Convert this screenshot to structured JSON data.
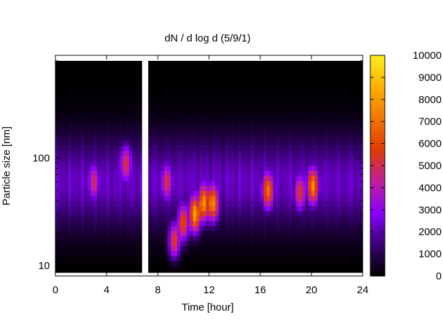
{
  "chart_data": {
    "type": "heatmap",
    "title": "dN / d log d (5/9/1)",
    "xlabel": "Time [hour]",
    "ylabel": "Particle size [nm]",
    "x_ticks": [
      0,
      4,
      8,
      12,
      16,
      20,
      24
    ],
    "x_range": [
      0,
      24
    ],
    "y_scale": "log",
    "y_ticks": [
      10,
      100
    ],
    "y_range_nm": [
      8,
      900
    ],
    "colorbar": {
      "ticks": [
        0,
        1000,
        2000,
        3000,
        4000,
        5000,
        6000,
        7000,
        8000,
        9000,
        10000
      ],
      "range": [
        0,
        10000
      ],
      "palette": [
        "#000000",
        "#3b0078",
        "#8a00ff",
        "#c0209a",
        "#e03a00",
        "#f07800",
        "#ffb000",
        "#ffee20"
      ]
    },
    "data_gap_hours": [
      6.75,
      7.2
    ],
    "background_level": 2200,
    "events": [
      {
        "time_h": 8.7,
        "diameter_nm": 60,
        "peak": 4300
      },
      {
        "time_h": 9.3,
        "diameter_nm": 17,
        "peak": 5500
      },
      {
        "time_h": 10.0,
        "diameter_nm": 25,
        "peak": 5800
      },
      {
        "time_h": 10.9,
        "diameter_nm": 30,
        "peak": 7800
      },
      {
        "time_h": 11.6,
        "diameter_nm": 38,
        "peak": 7200
      },
      {
        "time_h": 12.3,
        "diameter_nm": 38,
        "peak": 6900
      },
      {
        "time_h": 16.6,
        "diameter_nm": 50,
        "peak": 6300
      },
      {
        "time_h": 19.1,
        "diameter_nm": 48,
        "peak": 4600
      },
      {
        "time_h": 20.1,
        "diameter_nm": 55,
        "peak": 6800
      },
      {
        "time_h": 5.5,
        "diameter_nm": 90,
        "peak": 4600
      },
      {
        "time_h": 3.0,
        "diameter_nm": 60,
        "peak": 4000
      }
    ]
  }
}
